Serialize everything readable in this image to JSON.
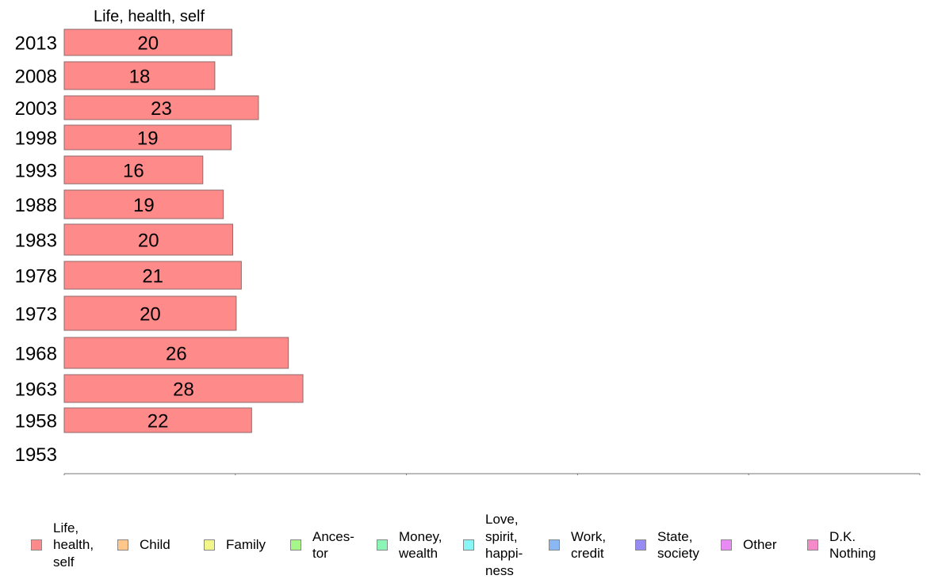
{
  "chart_data": {
    "type": "bar",
    "orientation": "horizontal",
    "series_title": "Life, health, self",
    "categories": [
      "2013",
      "2008",
      "2003",
      "1998",
      "1993",
      "1988",
      "1983",
      "1978",
      "1973",
      "1968",
      "1963",
      "1958",
      "1953"
    ],
    "series": [
      {
        "name": "Life,\nhealth,\nself",
        "color": "#ff8a8a",
        "values": [
          19.6,
          17.6,
          22.7,
          19.5,
          16.2,
          18.6,
          19.7,
          20.7,
          20.1,
          26.2,
          27.9,
          21.9,
          null
        ],
        "labels": [
          "20",
          "18",
          "23",
          "19",
          "16",
          "19",
          "20",
          "21",
          "20",
          "26",
          "28",
          "22",
          ""
        ]
      }
    ],
    "xlim": [
      0,
      100
    ],
    "x_ticks": [
      "0",
      "20",
      "40",
      "60",
      "80",
      "100"
    ],
    "grid": false,
    "legend_position": "bottom",
    "legend": [
      {
        "label": "Life,\nhealth,\nself",
        "color": "#ff8a8a"
      },
      {
        "label": "Child",
        "color": "#ffc88a"
      },
      {
        "label": "Family",
        "color": "#f2f58a"
      },
      {
        "label": "Ances-\ntor",
        "color": "#a8f58a"
      },
      {
        "label": "Money,\nwealth",
        "color": "#8af5b4"
      },
      {
        "label": "Love,\nspirit,\nhappi-\nness",
        "color": "#8af5f5"
      },
      {
        "label": "Work,\ncredit",
        "color": "#8ab8f5"
      },
      {
        "label": "State,\nsociety",
        "color": "#968af5"
      },
      {
        "label": "Other",
        "color": "#ea8af5"
      },
      {
        "label": "D.K.\nNothing",
        "color": "#f58ac8"
      }
    ]
  }
}
